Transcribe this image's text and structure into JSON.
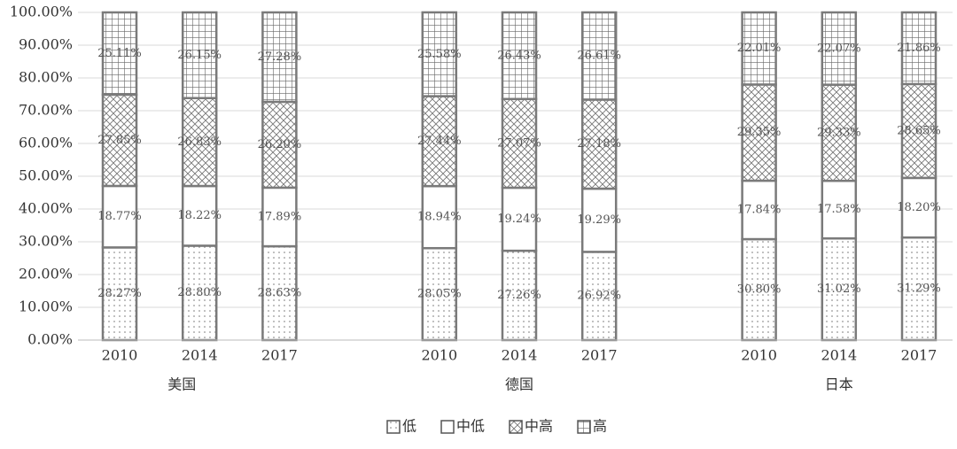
{
  "chart_data": {
    "type": "stacked-bar",
    "groups": [
      "美国",
      "德国",
      "日本"
    ],
    "categories": [
      "2010",
      "2014",
      "2017",
      "2010",
      "2014",
      "2017",
      "2010",
      "2014",
      "2017"
    ],
    "series": [
      {
        "name": "低",
        "pattern": "dots",
        "values": [
          28.27,
          28.8,
          28.63,
          28.05,
          27.26,
          26.92,
          30.8,
          31.02,
          31.29
        ],
        "value_labels": [
          "28.27%",
          "28.80%",
          "28.63%",
          "28.05%",
          "27.26%",
          "26.92%",
          "30.80%",
          "31.02%",
          "31.29%"
        ]
      },
      {
        "name": "中低",
        "pattern": "none",
        "values": [
          18.77,
          18.22,
          17.89,
          18.94,
          19.24,
          19.29,
          17.84,
          17.58,
          18.2
        ],
        "value_labels": [
          "18.77%",
          "18.22%",
          "17.89%",
          "18.94%",
          "19.24%",
          "19.29%",
          "17.84%",
          "17.58%",
          "18.20%"
        ]
      },
      {
        "name": "中高",
        "pattern": "crosshatch",
        "values": [
          27.85,
          26.83,
          26.2,
          27.44,
          27.07,
          27.18,
          29.35,
          29.33,
          28.65
        ],
        "value_labels": [
          "27.85%",
          "26.83%",
          "26.20%",
          "27.44%",
          "27.07%",
          "27.18%",
          "29.35%",
          "29.33%",
          "28.65%"
        ]
      },
      {
        "name": "高",
        "pattern": "grid",
        "values": [
          25.11,
          26.15,
          27.28,
          25.58,
          26.43,
          26.61,
          22.01,
          22.07,
          21.86
        ],
        "value_labels": [
          "25.11%",
          "26.15%",
          "27.28%",
          "25.58%",
          "26.43%",
          "26.61%",
          "22.01%",
          "22.07%",
          "21.86%"
        ]
      }
    ],
    "ylim": [
      0,
      100
    ],
    "yticks": [
      {
        "value": 0,
        "label": "0.00%"
      },
      {
        "value": 10,
        "label": "10.00%"
      },
      {
        "value": 20,
        "label": "20.00%"
      },
      {
        "value": 30,
        "label": "30.00%"
      },
      {
        "value": 40,
        "label": "40.00%"
      },
      {
        "value": 50,
        "label": "50.00%"
      },
      {
        "value": 60,
        "label": "60.00%"
      },
      {
        "value": 70,
        "label": "70.00%"
      },
      {
        "value": 80,
        "label": "80.00%"
      },
      {
        "value": 90,
        "label": "90.00%"
      },
      {
        "value": 100,
        "label": "100.00%"
      }
    ],
    "grid": true,
    "legend": "bottom"
  }
}
